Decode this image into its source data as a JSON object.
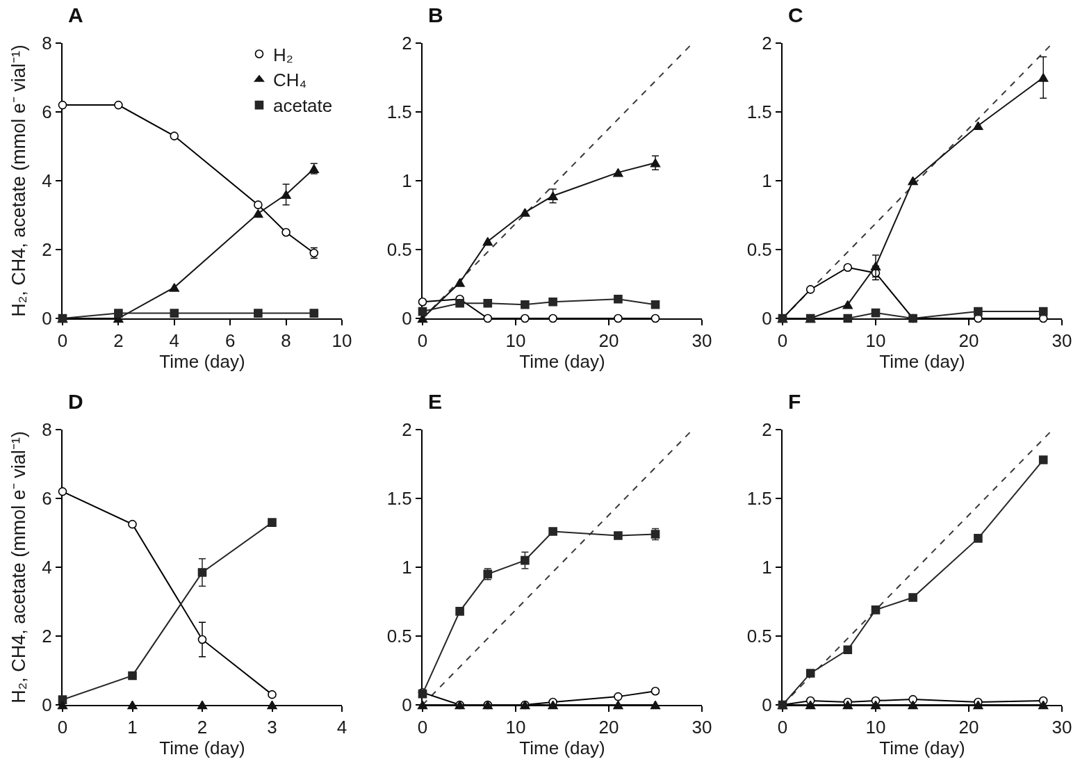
{
  "chart_data": [
    {
      "type": "line",
      "title": "A",
      "xlabel": "Time (day)",
      "ylabel": "H₂, CH4, acetate (mmol e⁻ vial⁻¹)",
      "x": [
        0,
        2,
        4,
        7,
        8,
        9
      ],
      "xlim": [
        0,
        10
      ],
      "xticks": [
        0,
        2,
        4,
        6,
        8,
        10
      ],
      "ylim": [
        0,
        8
      ],
      "yticks": [
        0,
        2,
        4,
        6,
        8
      ],
      "legend": "top right",
      "series": [
        {
          "name": "H₂",
          "color": "#000000",
          "marker": "circle",
          "values": [
            6.2,
            6.2,
            5.3,
            3.3,
            2.5,
            1.9
          ],
          "errors": [
            null,
            null,
            null,
            null,
            null,
            0.15
          ]
        },
        {
          "name": "CH₄",
          "color": "#141414",
          "marker": "triangle",
          "values": [
            0,
            0,
            0.9,
            3.05,
            3.6,
            4.35
          ],
          "errors": [
            null,
            null,
            null,
            null,
            0.3,
            0.15
          ]
        },
        {
          "name": "acetate",
          "color": "#262626",
          "marker": "square",
          "x": [
            0,
            2,
            4,
            7,
            9
          ],
          "values": [
            0,
            0.15,
            0.15,
            0.15,
            0.15
          ]
        }
      ]
    },
    {
      "type": "line",
      "title": "B",
      "xlabel": "Time (day)",
      "x": [
        0,
        4,
        7,
        11,
        14,
        21,
        25
      ],
      "xlim": [
        0,
        30
      ],
      "xticks": [
        0,
        10,
        20,
        30
      ],
      "ylim": [
        0,
        2
      ],
      "yticks": [
        0,
        0.5,
        1,
        1.5,
        2
      ],
      "series": [
        {
          "type": "line",
          "color": "#383838",
          "line_style": "dashed",
          "marker": "none",
          "x": [
            0,
            29
          ],
          "values": [
            0,
            2
          ]
        },
        {
          "color": "#000000",
          "marker": "circle",
          "values": [
            0.12,
            0.14,
            0,
            0,
            0,
            0,
            0
          ]
        },
        {
          "color": "#141414",
          "marker": "triangle",
          "values": [
            0,
            0.26,
            0.56,
            0.77,
            0.89,
            1.06,
            1.13
          ],
          "errors": [
            null,
            null,
            null,
            null,
            0.05,
            null,
            0.05
          ]
        },
        {
          "color": "#262626",
          "marker": "square",
          "values": [
            0.05,
            0.11,
            0.11,
            0.1,
            0.12,
            0.14,
            0.1
          ]
        }
      ]
    },
    {
      "type": "line",
      "title": "C",
      "xlabel": "Time (day)",
      "x": [
        0,
        3,
        7,
        10,
        14,
        21,
        28
      ],
      "xlim": [
        0,
        30
      ],
      "xticks": [
        0,
        10,
        20,
        30
      ],
      "ylim": [
        0,
        2
      ],
      "yticks": [
        0,
        0.5,
        1,
        1.5,
        2
      ],
      "series": [
        {
          "type": "line",
          "color": "#383838",
          "line_style": "dashed",
          "marker": "none",
          "x": [
            0,
            29
          ],
          "values": [
            0,
            2
          ]
        },
        {
          "color": "#000000",
          "marker": "circle",
          "values": [
            0,
            0.21,
            0.37,
            0.33,
            0,
            0,
            0
          ],
          "errors": [
            null,
            null,
            null,
            0.05,
            null,
            null,
            null
          ]
        },
        {
          "color": "#141414",
          "marker": "triangle",
          "values": [
            0,
            0,
            0.1,
            0.38,
            1,
            1.4,
            1.75
          ],
          "errors": [
            null,
            null,
            null,
            0.08,
            null,
            null,
            0.15
          ]
        },
        {
          "color": "#262626",
          "marker": "square",
          "values": [
            0,
            0,
            0,
            0.04,
            0,
            0.05,
            0.05
          ]
        }
      ]
    },
    {
      "type": "line",
      "title": "D",
      "xlabel": "Time (day)",
      "ylabel": "H₂, CH4, acetate (mmol e⁻ vial⁻¹)",
      "x": [
        0,
        1,
        2,
        3
      ],
      "xlim": [
        0,
        4
      ],
      "xticks": [
        0,
        1,
        2,
        3,
        4
      ],
      "ylim": [
        0,
        8
      ],
      "yticks": [
        0,
        2,
        4,
        6,
        8
      ],
      "series": [
        {
          "color": "#000000",
          "marker": "circle",
          "values": [
            6.2,
            5.25,
            1.9,
            0.3
          ],
          "errors": [
            null,
            null,
            0.5,
            null
          ]
        },
        {
          "color": "#262626",
          "marker": "square",
          "values": [
            0.15,
            0.85,
            3.85,
            5.3
          ],
          "errors": [
            null,
            null,
            0.4,
            null
          ]
        },
        {
          "type": "scatter",
          "color": "#141414",
          "marker": "triangle",
          "values": [
            0,
            0,
            0,
            0
          ]
        }
      ]
    },
    {
      "type": "line",
      "title": "E",
      "xlabel": "Time (day)",
      "x": [
        0,
        4,
        7,
        11,
        14,
        21,
        25
      ],
      "xlim": [
        0,
        30
      ],
      "xticks": [
        0,
        10,
        20,
        30
      ],
      "ylim": [
        0,
        2
      ],
      "yticks": [
        0,
        0.5,
        1,
        1.5,
        2
      ],
      "series": [
        {
          "type": "line",
          "color": "#383838",
          "line_style": "dashed",
          "marker": "none",
          "x": [
            0,
            29
          ],
          "values": [
            0,
            2
          ]
        },
        {
          "color": "#000000",
          "marker": "circle",
          "values": [
            0.09,
            0,
            0,
            0,
            0.02,
            0.06,
            0.1
          ]
        },
        {
          "color": "#141414",
          "marker": "triangle",
          "values": [
            0,
            0,
            0,
            0,
            0,
            0,
            0
          ]
        },
        {
          "color": "#262626",
          "marker": "square",
          "values": [
            0.08,
            0.68,
            0.95,
            1.05,
            1.26,
            1.23,
            1.24
          ],
          "errors": [
            null,
            null,
            0.04,
            0.06,
            null,
            null,
            0.04
          ]
        }
      ]
    },
    {
      "type": "line",
      "title": "F",
      "xlabel": "Time (day)",
      "x": [
        0,
        3,
        7,
        10,
        14,
        21,
        28
      ],
      "xlim": [
        0,
        30
      ],
      "xticks": [
        0,
        10,
        20,
        30
      ],
      "ylim": [
        0,
        2
      ],
      "yticks": [
        0,
        0.5,
        1,
        1.5,
        2
      ],
      "series": [
        {
          "type": "line",
          "color": "#383838",
          "line_style": "dashed",
          "marker": "none",
          "x": [
            0,
            29
          ],
          "values": [
            0,
            2
          ]
        },
        {
          "color": "#000000",
          "marker": "circle",
          "values": [
            0,
            0.03,
            0.02,
            0.03,
            0.04,
            0.02,
            0.03
          ]
        },
        {
          "color": "#141414",
          "marker": "triangle",
          "values": [
            0,
            0,
            0,
            0,
            0,
            0,
            0
          ]
        },
        {
          "color": "#262626",
          "marker": "square",
          "values": [
            0,
            0.23,
            0.4,
            0.69,
            0.78,
            1.21,
            1.78
          ]
        }
      ]
    }
  ]
}
